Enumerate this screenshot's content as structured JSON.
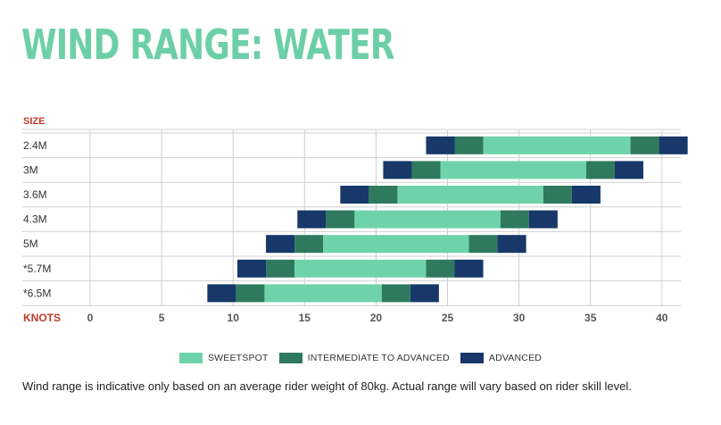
{
  "page": {
    "title": "WIND RANGE: WATER",
    "note": "Wind range is indicative only based on an average rider weight of 80kg. Actual range will vary based on rider skill level."
  },
  "colors": {
    "title": "#6ccfa8",
    "sweetspot": "#6ed3ab",
    "intermediate": "#2f7a5f",
    "advanced": "#173868",
    "axis_label": "#c0392b",
    "grid": "#d0d0d0",
    "text": "#333333"
  },
  "legend": [
    {
      "key": "sweetspot",
      "label": "SWEETSPOT"
    },
    {
      "key": "intermediate",
      "label": "INTERMEDIATE TO ADVANCED"
    },
    {
      "key": "advanced",
      "label": "ADVANCED"
    }
  ],
  "chart_data": {
    "type": "bar",
    "orientation": "horizontal",
    "stacked_ranges": true,
    "title": "WIND RANGE: WATER",
    "ylabel": "SIZE",
    "xlabel": "KNOTS",
    "xlim": [
      0,
      42
    ],
    "xticks": [
      0,
      5,
      10,
      15,
      20,
      25,
      30,
      35,
      40
    ],
    "grid": true,
    "legend_position": "bottom",
    "categories": [
      "2.4M",
      "3M",
      "3.6M",
      "4.3M",
      "5M",
      "*5.7M",
      "*6.5M"
    ],
    "segment_order": [
      "advanced",
      "intermediate",
      "sweetspot",
      "intermediate",
      "advanced"
    ],
    "ranges": [
      [
        23.5,
        25.5,
        27.5,
        37.8,
        39.8,
        41.8
      ],
      [
        20.5,
        22.5,
        24.5,
        34.7,
        36.7,
        38.7
      ],
      [
        17.5,
        19.5,
        21.5,
        31.7,
        33.7,
        35.7
      ],
      [
        14.5,
        16.5,
        18.5,
        28.7,
        30.7,
        32.7
      ],
      [
        12.3,
        14.3,
        16.3,
        26.5,
        28.5,
        30.5
      ],
      [
        10.3,
        12.3,
        14.3,
        23.5,
        25.5,
        27.5
      ],
      [
        8.2,
        10.2,
        12.2,
        20.4,
        22.4,
        24.4
      ]
    ]
  }
}
